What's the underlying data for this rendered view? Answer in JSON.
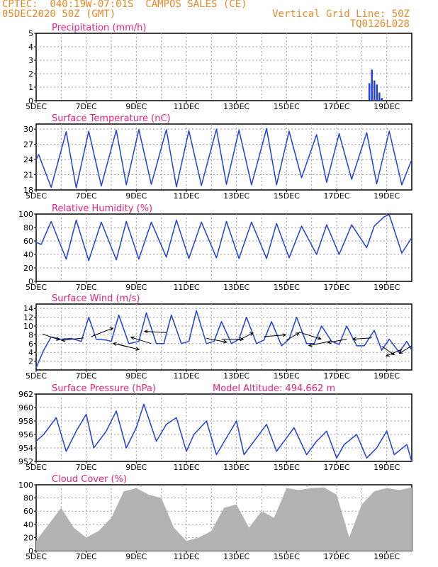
{
  "header": {
    "source_line": "CPTEC:  040:19W-07:01S  CAMPOS SALES (CE)",
    "date_line": "05DEC2020 50Z (GMT)",
    "grid_note": "Vertical Grid Line: 50Z",
    "model_code": "TQ0126L028"
  },
  "colors": {
    "accent_title": "#e8227a",
    "series": "#1f3fe0",
    "cloud_fill": "#b3b3b3",
    "header": "#e8892a"
  },
  "x_axis": {
    "tick_labels": [
      "5DEC",
      "7DEC",
      "9DEC",
      "11DEC",
      "13DEC",
      "15DEC",
      "17DEC",
      "19DEC"
    ],
    "range_days": [
      5,
      20
    ]
  },
  "chart_data": [
    {
      "type": "bar",
      "title": "Precipitation (mm/h)",
      "ylim": [
        0,
        5
      ],
      "yticks": [
        0,
        1,
        2,
        3,
        4,
        5
      ],
      "x": [
        18.3,
        18.4,
        18.5,
        18.6,
        18.7,
        18.8,
        18.9
      ],
      "values": [
        1.3,
        2.3,
        1.5,
        1.2,
        0.6,
        0.2,
        0.0
      ]
    },
    {
      "type": "line",
      "title": "Surface Temperature (nC)",
      "ylim": [
        18,
        31
      ],
      "yticks": [
        18,
        21,
        24,
        27,
        30
      ],
      "x": [
        5.0,
        5.1,
        5.6,
        6.2,
        6.6,
        7.1,
        7.6,
        8.2,
        8.6,
        9.1,
        9.6,
        10.2,
        10.6,
        11.1,
        11.6,
        12.2,
        12.6,
        13.1,
        13.6,
        14.2,
        14.6,
        15.1,
        15.6,
        16.2,
        16.6,
        17.1,
        17.6,
        18.2,
        18.6,
        19.1,
        19.6,
        20.0
      ],
      "values": [
        24.0,
        25.0,
        18.5,
        29.5,
        18.4,
        29.6,
        18.8,
        29.8,
        19.0,
        29.9,
        19.1,
        29.9,
        18.6,
        29.7,
        18.9,
        30.0,
        19.1,
        29.8,
        19.0,
        30.1,
        19.0,
        29.6,
        20.4,
        28.9,
        19.5,
        29.1,
        20.1,
        29.3,
        19.2,
        29.6,
        19.0,
        24.0
      ]
    },
    {
      "type": "line",
      "title": "Relative Humidity (%)",
      "ylim": [
        0,
        100
      ],
      "yticks": [
        0,
        20,
        40,
        60,
        80,
        100
      ],
      "x": [
        5.0,
        5.2,
        5.6,
        6.2,
        6.6,
        7.1,
        7.6,
        8.2,
        8.6,
        9.1,
        9.6,
        10.2,
        10.6,
        11.1,
        11.6,
        12.2,
        12.6,
        13.1,
        13.6,
        14.2,
        14.6,
        15.1,
        15.6,
        16.2,
        16.6,
        17.1,
        17.6,
        18.2,
        18.5,
        18.9,
        19.1,
        19.6,
        20.0
      ],
      "values": [
        58,
        55,
        89,
        33,
        91,
        31,
        88,
        32,
        89,
        33,
        88,
        36,
        91,
        34,
        88,
        35,
        89,
        34,
        88,
        34,
        86,
        35,
        82,
        40,
        84,
        40,
        84,
        50,
        82,
        96,
        99,
        42,
        65
      ]
    },
    {
      "type": "line",
      "title": "Surface Wind (m/s)",
      "ylim": [
        0,
        15
      ],
      "yticks": [
        2,
        4,
        6,
        8,
        10,
        12,
        14
      ],
      "x": [
        5.0,
        5.3,
        5.6,
        6.0,
        6.4,
        6.8,
        7.1,
        7.4,
        7.8,
        8.0,
        8.3,
        8.7,
        9.1,
        9.4,
        9.8,
        10.1,
        10.4,
        10.8,
        11.1,
        11.4,
        11.8,
        12.1,
        12.4,
        12.8,
        13.1,
        13.4,
        13.8,
        14.1,
        14.4,
        14.8,
        15.1,
        15.4,
        15.8,
        16.1,
        16.4,
        16.8,
        17.1,
        17.4,
        17.8,
        18.1,
        18.5,
        18.8,
        19.1,
        19.5,
        19.8,
        20.0
      ],
      "values": [
        0.5,
        4.5,
        7.5,
        7.0,
        7.2,
        6.5,
        12.0,
        7.0,
        6.8,
        6.5,
        12.5,
        6.0,
        6.5,
        13.0,
        6.0,
        6.0,
        12.5,
        6.0,
        6.5,
        13.5,
        6.0,
        6.5,
        11.0,
        6.0,
        7.0,
        12.0,
        6.0,
        6.8,
        11.0,
        5.5,
        7.0,
        12.0,
        6.0,
        6.0,
        10.0,
        6.5,
        5.8,
        10.0,
        5.5,
        5.5,
        9.0,
        4.5,
        7.0,
        4.0,
        6.5,
        4.5
      ]
    },
    {
      "type": "line",
      "title": "Surface Pressure (hPa)",
      "ylim": [
        952,
        962
      ],
      "yticks": [
        952,
        954,
        956,
        958,
        960,
        962
      ],
      "annotation": "Model Altitude: 494.662 m",
      "x": [
        5.0,
        5.3,
        5.8,
        6.2,
        6.6,
        7.0,
        7.3,
        7.8,
        8.2,
        8.6,
        9.0,
        9.3,
        9.8,
        10.2,
        10.6,
        11.0,
        11.3,
        11.8,
        12.2,
        12.6,
        13.0,
        13.3,
        13.8,
        14.2,
        14.6,
        15.0,
        15.3,
        15.8,
        16.2,
        16.6,
        17.0,
        17.3,
        17.8,
        18.2,
        18.6,
        19.0,
        19.3,
        19.8,
        20.0
      ],
      "values": [
        955.0,
        956.0,
        958.5,
        953.5,
        956.5,
        959.0,
        954.0,
        956.5,
        959.5,
        954.0,
        957.0,
        960.5,
        955.0,
        957.5,
        958.5,
        953.5,
        956.0,
        958.0,
        953.0,
        955.5,
        958.0,
        953.0,
        955.5,
        957.5,
        953.5,
        955.5,
        957.0,
        953.0,
        955.0,
        956.5,
        952.5,
        954.5,
        956.0,
        952.5,
        954.0,
        956.5,
        953.0,
        954.5,
        952.0
      ]
    },
    {
      "type": "bar",
      "title": "Cloud Cover (%)",
      "ylim": [
        0,
        100
      ],
      "yticks": [
        0,
        20,
        40,
        60,
        80,
        100
      ],
      "x": [
        5.0,
        5.5,
        6.0,
        6.5,
        7.0,
        7.5,
        8.0,
        8.5,
        9.0,
        9.5,
        10.0,
        10.5,
        11.0,
        11.5,
        12.0,
        12.5,
        13.0,
        13.5,
        14.0,
        14.5,
        15.0,
        15.5,
        16.0,
        16.5,
        17.0,
        17.5,
        18.0,
        18.5,
        19.0,
        19.5,
        20.0
      ],
      "values": [
        15,
        40,
        65,
        35,
        20,
        30,
        50,
        90,
        95,
        85,
        80,
        35,
        15,
        20,
        30,
        65,
        70,
        35,
        60,
        50,
        95,
        92,
        95,
        96,
        85,
        20,
        70,
        90,
        95,
        92,
        96
      ]
    }
  ],
  "wind_vectors": [
    {
      "x": 5.25,
      "y": 8.2,
      "dx": 1.1,
      "dy": -1.4
    },
    {
      "x": 6.9,
      "y": 7.3,
      "dx": -1.4,
      "dy": -0.6
    },
    {
      "x": 7.2,
      "y": 7.6,
      "dx": 1.4,
      "dy": 2.0
    },
    {
      "x": 8.3,
      "y": 5.8,
      "dx": 1.3,
      "dy": -1.2
    },
    {
      "x": 8.7,
      "y": 5.2,
      "dx": -1.0,
      "dy": 0.9
    },
    {
      "x": 9.6,
      "y": 6.0,
      "dx": -1.3,
      "dy": 1.5
    },
    {
      "x": 10.2,
      "y": 8.5,
      "dx": -1.4,
      "dy": 0.3
    },
    {
      "x": 11.8,
      "y": 7.2,
      "dx": 1.3,
      "dy": -0.9
    },
    {
      "x": 12.4,
      "y": 7.0,
      "dx": 1.4,
      "dy": 0.0
    },
    {
      "x": 13.1,
      "y": 6.8,
      "dx": 0.9,
      "dy": 1.7
    },
    {
      "x": 14.1,
      "y": 7.6,
      "dx": 1.4,
      "dy": 0.4
    },
    {
      "x": 15.0,
      "y": 6.8,
      "dx": 0.8,
      "dy": 1.7
    },
    {
      "x": 15.5,
      "y": 8.6,
      "dx": 1.4,
      "dy": -1.6
    },
    {
      "x": 16.7,
      "y": 6.5,
      "dx": -1.3,
      "dy": -1.0
    },
    {
      "x": 17.4,
      "y": 7.0,
      "dx": -1.2,
      "dy": -0.8
    },
    {
      "x": 18.4,
      "y": 7.3,
      "dx": -1.2,
      "dy": -0.3
    },
    {
      "x": 18.8,
      "y": 5.4,
      "dx": 0.8,
      "dy": -2.0
    },
    {
      "x": 19.6,
      "y": 4.7,
      "dx": -1.0,
      "dy": -1.6
    },
    {
      "x": 20.0,
      "y": 5.5,
      "dx": -0.8,
      "dy": -1.8
    }
  ]
}
